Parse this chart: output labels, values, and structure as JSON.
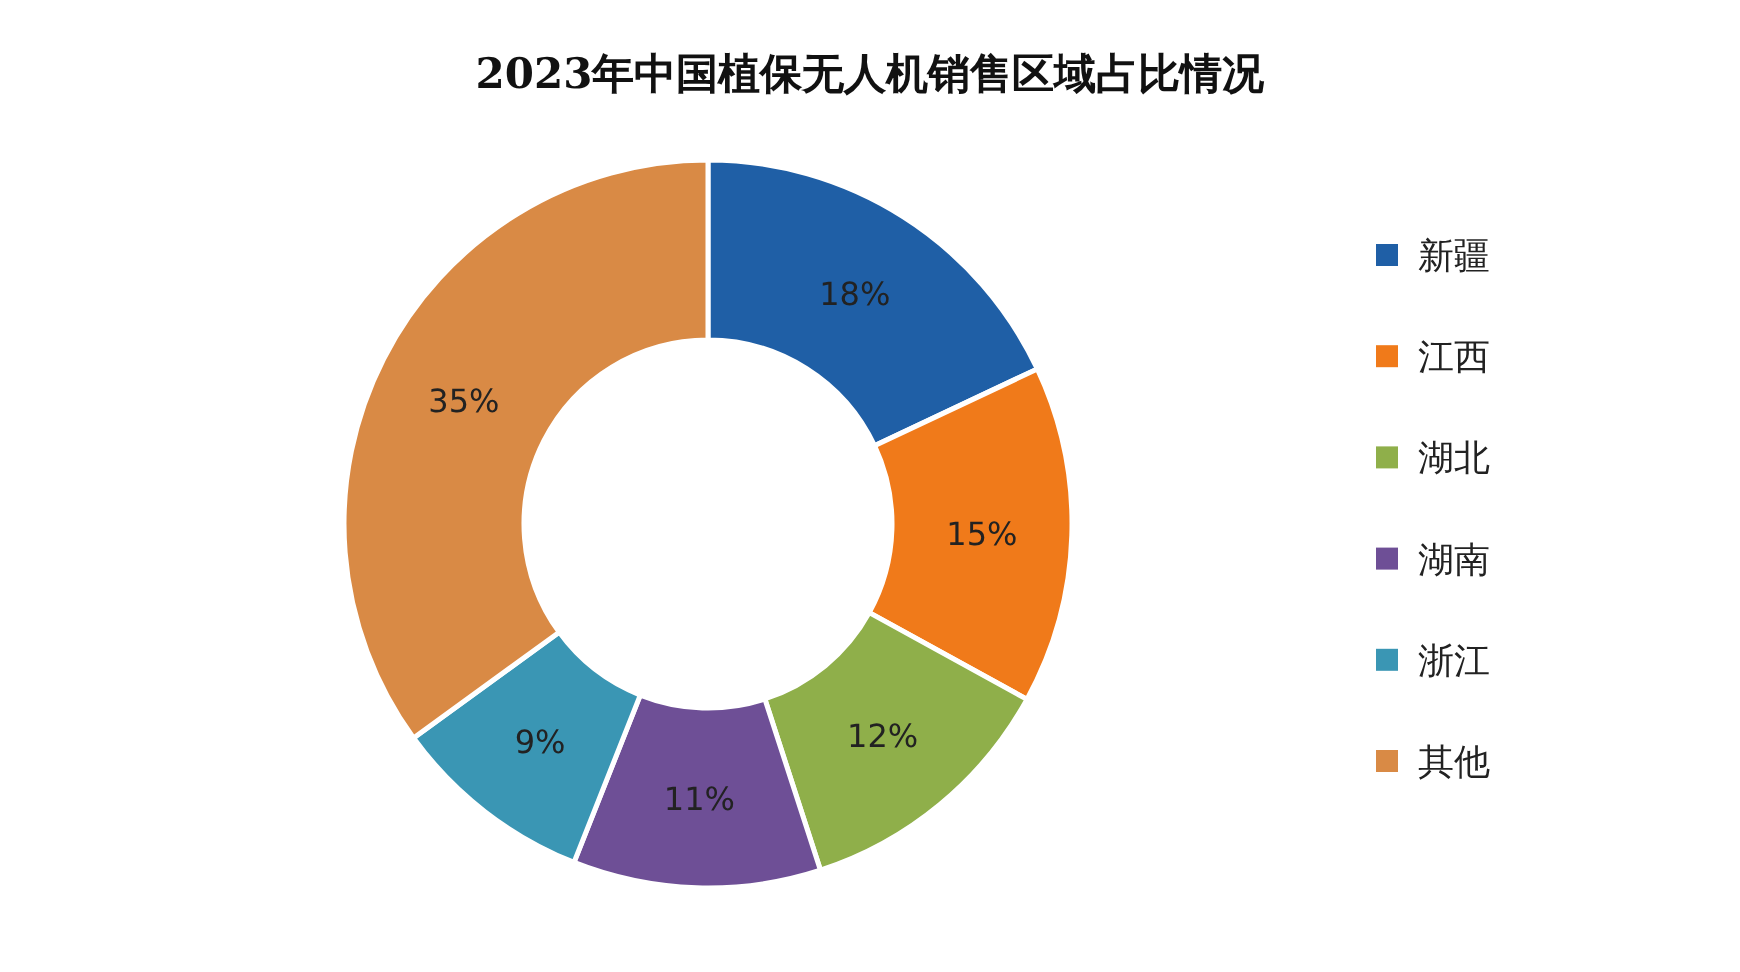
{
  "chart_data": {
    "type": "donut",
    "title": "2023年中国植保无人机销售区域占比情况",
    "categories": [
      "新疆",
      "江西",
      "湖北",
      "湖南",
      "浙江",
      "其他"
    ],
    "values": [
      18,
      15,
      12,
      11,
      9,
      35
    ],
    "colors": [
      "#1f5fa6",
      "#f07a1a",
      "#8faf4a",
      "#6e4f96",
      "#3a96b4",
      "#d98a45"
    ],
    "value_labels": [
      "18%",
      "15%",
      "12%",
      "11%",
      "9%",
      "35%"
    ],
    "legend": "right"
  }
}
